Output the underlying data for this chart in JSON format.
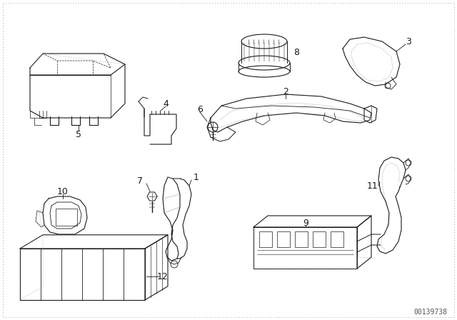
{
  "bg_color": "#ffffff",
  "line_color": "#1a1a1a",
  "dash_color": "#555555",
  "fig_width": 6.4,
  "fig_height": 4.48,
  "dpi": 100,
  "watermark": "00139738",
  "parts": {
    "label_fontsize": 9,
    "lw": 0.8
  }
}
